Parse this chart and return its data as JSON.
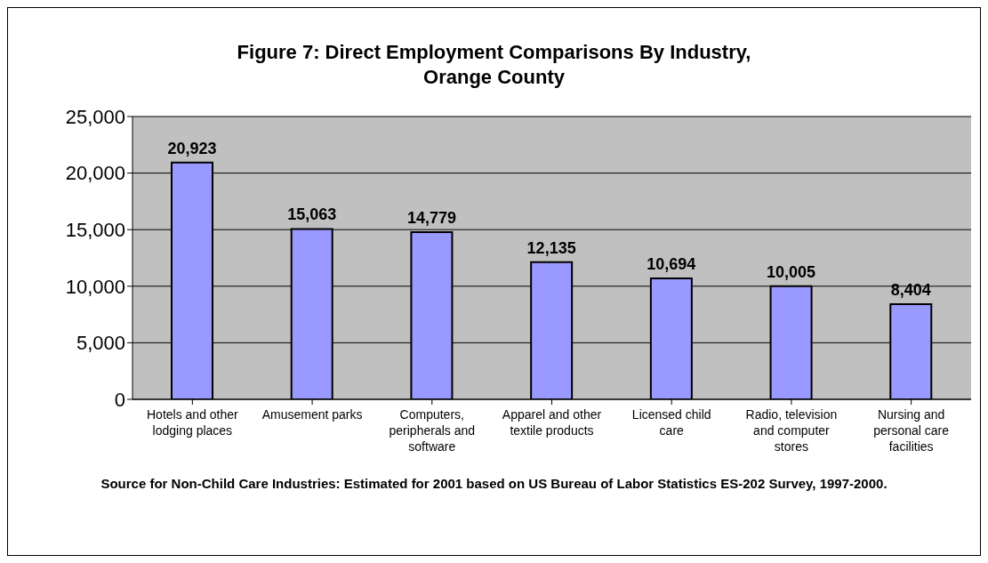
{
  "chart_data": {
    "type": "bar",
    "title": "Figure 7: Direct Employment Comparisons By Industry, Orange County",
    "categories": [
      "Hotels and other lodging places",
      "Amusement parks",
      "Computers, peripherals and software",
      "Apparel and other textile products",
      "Licensed child care",
      "Radio, television and computer stores",
      "Nursing and personal care facilities"
    ],
    "values": [
      20923,
      15063,
      14779,
      12135,
      10694,
      10005,
      8404
    ],
    "color": "#9999ff",
    "value_labels": [
      "20,923",
      "15,063",
      "14,779",
      "12,135",
      "10,694",
      "10,005",
      "8,404"
    ],
    "ylim": [
      0,
      25000
    ],
    "yticks": [
      0,
      {
        "value": 5000,
        "label": "5,000"
      },
      {
        "value": 10000,
        "label": "10,000"
      },
      {
        "value": 15000,
        "label": "15,000"
      },
      {
        "value": 20000,
        "label": "20,000"
      },
      {
        "value": 25000,
        "label": "25,000"
      }
    ],
    "grid": "y",
    "annotations": [
      "Source for Non-Child Care Industries: Estimated for 2001 based on US Bureau of Labor Statistics ES-202 Survey, 1997-2000."
    ]
  }
}
